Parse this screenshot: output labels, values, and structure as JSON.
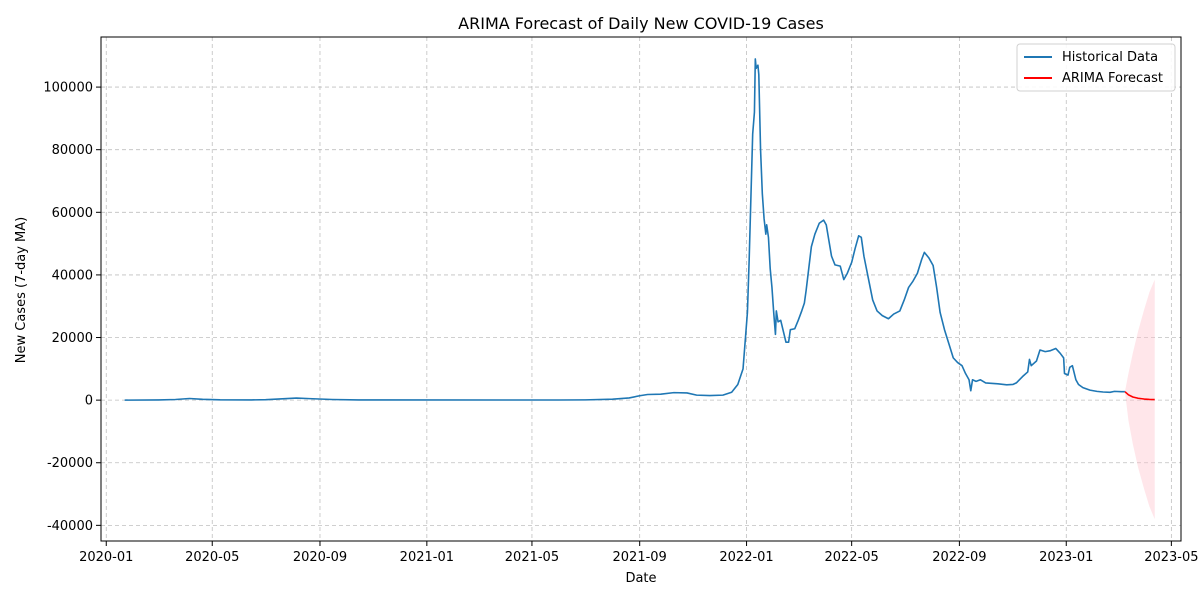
{
  "chart_data": {
    "type": "line",
    "title": "ARIMA Forecast of Daily New COVID-19 Cases",
    "xlabel": "Date",
    "ylabel": "New Cases (7-day MA)",
    "xlim": [
      "2019-12-26",
      "2023-05-12"
    ],
    "ylim": [
      -45000,
      116000
    ],
    "x_ticks": [
      "2020-01",
      "2020-05",
      "2020-09",
      "2021-01",
      "2021-05",
      "2021-09",
      "2022-01",
      "2022-05",
      "2022-09",
      "2023-01",
      "2023-05"
    ],
    "y_ticks": [
      -40000,
      -20000,
      0,
      20000,
      40000,
      60000,
      80000,
      100000
    ],
    "grid": true,
    "legend_position": "top-right",
    "series": [
      {
        "name": "Historical Data",
        "color": "#1f77b4",
        "points": [
          [
            "2020-01-22",
            0
          ],
          [
            "2020-03-01",
            60
          ],
          [
            "2020-03-20",
            200
          ],
          [
            "2020-04-05",
            520
          ],
          [
            "2020-04-20",
            250
          ],
          [
            "2020-05-10",
            100
          ],
          [
            "2020-06-15",
            70
          ],
          [
            "2020-07-01",
            150
          ],
          [
            "2020-07-20",
            420
          ],
          [
            "2020-08-05",
            650
          ],
          [
            "2020-08-20",
            480
          ],
          [
            "2020-09-15",
            200
          ],
          [
            "2020-10-15",
            60
          ],
          [
            "2021-06-01",
            40
          ],
          [
            "2021-07-01",
            80
          ],
          [
            "2021-08-01",
            300
          ],
          [
            "2021-08-20",
            700
          ],
          [
            "2021-09-01",
            1400
          ],
          [
            "2021-09-10",
            1800
          ],
          [
            "2021-09-25",
            1900
          ],
          [
            "2021-10-10",
            2400
          ],
          [
            "2021-10-25",
            2300
          ],
          [
            "2021-11-05",
            1600
          ],
          [
            "2021-11-20",
            1450
          ],
          [
            "2021-12-05",
            1600
          ],
          [
            "2021-12-15",
            2500
          ],
          [
            "2021-12-22",
            5000
          ],
          [
            "2021-12-28",
            10000
          ],
          [
            "2022-01-02",
            28000
          ],
          [
            "2022-01-04",
            45000
          ],
          [
            "2022-01-06",
            65000
          ],
          [
            "2022-01-08",
            85000
          ],
          [
            "2022-01-10",
            92000
          ],
          [
            "2022-01-11",
            109000
          ],
          [
            "2022-01-12",
            106000
          ],
          [
            "2022-01-14",
            107000
          ],
          [
            "2022-01-15",
            104000
          ],
          [
            "2022-01-17",
            80000
          ],
          [
            "2022-01-19",
            66000
          ],
          [
            "2022-01-21",
            58000
          ],
          [
            "2022-01-23",
            53000
          ],
          [
            "2022-01-24",
            56000
          ],
          [
            "2022-01-26",
            52000
          ],
          [
            "2022-01-28",
            42000
          ],
          [
            "2022-01-30",
            36000
          ],
          [
            "2022-02-01",
            28000
          ],
          [
            "2022-02-03",
            21000
          ],
          [
            "2022-02-04",
            28500
          ],
          [
            "2022-02-06",
            25000
          ],
          [
            "2022-02-09",
            25500
          ],
          [
            "2022-02-12",
            22000
          ],
          [
            "2022-02-15",
            18500
          ],
          [
            "2022-02-18",
            18500
          ],
          [
            "2022-02-20",
            22500
          ],
          [
            "2022-02-25",
            22800
          ],
          [
            "2022-03-01",
            25500
          ],
          [
            "2022-03-05",
            28500
          ],
          [
            "2022-03-08",
            31000
          ],
          [
            "2022-03-10",
            35000
          ],
          [
            "2022-03-13",
            42000
          ],
          [
            "2022-03-16",
            49000
          ],
          [
            "2022-03-20",
            53000
          ],
          [
            "2022-03-25",
            56500
          ],
          [
            "2022-03-30",
            57500
          ],
          [
            "2022-04-02",
            56000
          ],
          [
            "2022-04-05",
            51000
          ],
          [
            "2022-04-08",
            46000
          ],
          [
            "2022-04-12",
            43200
          ],
          [
            "2022-04-18",
            42800
          ],
          [
            "2022-04-22",
            38500
          ],
          [
            "2022-04-26",
            40500
          ],
          [
            "2022-05-01",
            44000
          ],
          [
            "2022-05-05",
            48500
          ],
          [
            "2022-05-09",
            52500
          ],
          [
            "2022-05-12",
            52000
          ],
          [
            "2022-05-15",
            46000
          ],
          [
            "2022-05-20",
            39000
          ],
          [
            "2022-05-25",
            32000
          ],
          [
            "2022-05-30",
            28500
          ],
          [
            "2022-06-05",
            27000
          ],
          [
            "2022-06-12",
            26000
          ],
          [
            "2022-06-18",
            27500
          ],
          [
            "2022-06-25",
            28500
          ],
          [
            "2022-06-30",
            32000
          ],
          [
            "2022-07-05",
            36000
          ],
          [
            "2022-07-10",
            38000
          ],
          [
            "2022-07-15",
            40500
          ],
          [
            "2022-07-20",
            45000
          ],
          [
            "2022-07-23",
            47200
          ],
          [
            "2022-07-28",
            45500
          ],
          [
            "2022-08-02",
            43000
          ],
          [
            "2022-08-06",
            36000
          ],
          [
            "2022-08-10",
            28000
          ],
          [
            "2022-08-15",
            22500
          ],
          [
            "2022-08-20",
            18000
          ],
          [
            "2022-08-25",
            13500
          ],
          [
            "2022-08-30",
            12000
          ],
          [
            "2022-09-04",
            11000
          ],
          [
            "2022-09-08",
            8500
          ],
          [
            "2022-09-12",
            6500
          ],
          [
            "2022-09-14",
            3000
          ],
          [
            "2022-09-16",
            6500
          ],
          [
            "2022-09-20",
            6000
          ],
          [
            "2022-09-25",
            6500
          ],
          [
            "2022-10-01",
            5500
          ],
          [
            "2022-10-15",
            5200
          ],
          [
            "2022-10-25",
            4900
          ],
          [
            "2022-11-01",
            5000
          ],
          [
            "2022-11-05",
            5500
          ],
          [
            "2022-11-12",
            7500
          ],
          [
            "2022-11-18",
            9000
          ],
          [
            "2022-11-20",
            13000
          ],
          [
            "2022-11-22",
            11000
          ],
          [
            "2022-11-28",
            12500
          ],
          [
            "2022-12-02",
            16000
          ],
          [
            "2022-12-08",
            15500
          ],
          [
            "2022-12-14",
            15800
          ],
          [
            "2022-12-20",
            16500
          ],
          [
            "2022-12-25",
            15000
          ],
          [
            "2022-12-29",
            13500
          ],
          [
            "2022-12-30",
            8500
          ],
          [
            "2023-01-03",
            8000
          ],
          [
            "2023-01-05",
            10500
          ],
          [
            "2023-01-08",
            11000
          ],
          [
            "2023-01-12",
            6500
          ],
          [
            "2023-01-15",
            5000
          ],
          [
            "2023-01-20",
            4000
          ],
          [
            "2023-01-28",
            3200
          ],
          [
            "2023-02-05",
            2800
          ],
          [
            "2023-02-12",
            2600
          ],
          [
            "2023-02-20",
            2500
          ],
          [
            "2023-02-25",
            2800
          ],
          [
            "2023-03-05",
            2700
          ],
          [
            "2023-03-09",
            2700
          ]
        ]
      },
      {
        "name": "ARIMA Forecast",
        "color": "#ff0000",
        "points": [
          [
            "2023-03-09",
            2700
          ],
          [
            "2023-03-13",
            1700
          ],
          [
            "2023-03-18",
            1000
          ],
          [
            "2023-03-24",
            600
          ],
          [
            "2023-03-31",
            350
          ],
          [
            "2023-04-06",
            220
          ],
          [
            "2023-04-12",
            180
          ]
        ]
      }
    ],
    "confidence_band": {
      "color": "#ffc0cb",
      "upper": [
        [
          "2023-03-09",
          2700
        ],
        [
          "2023-03-13",
          8500
        ],
        [
          "2023-03-18",
          15000
        ],
        [
          "2023-03-24",
          22000
        ],
        [
          "2023-03-31",
          29000
        ],
        [
          "2023-04-06",
          34500
        ],
        [
          "2023-04-12",
          38500
        ]
      ],
      "lower": [
        [
          "2023-03-09",
          2700
        ],
        [
          "2023-03-13",
          -6500
        ],
        [
          "2023-03-18",
          -14000
        ],
        [
          "2023-03-24",
          -21500
        ],
        [
          "2023-03-31",
          -28500
        ],
        [
          "2023-04-06",
          -34000
        ],
        [
          "2023-04-12",
          -38000
        ]
      ]
    }
  }
}
